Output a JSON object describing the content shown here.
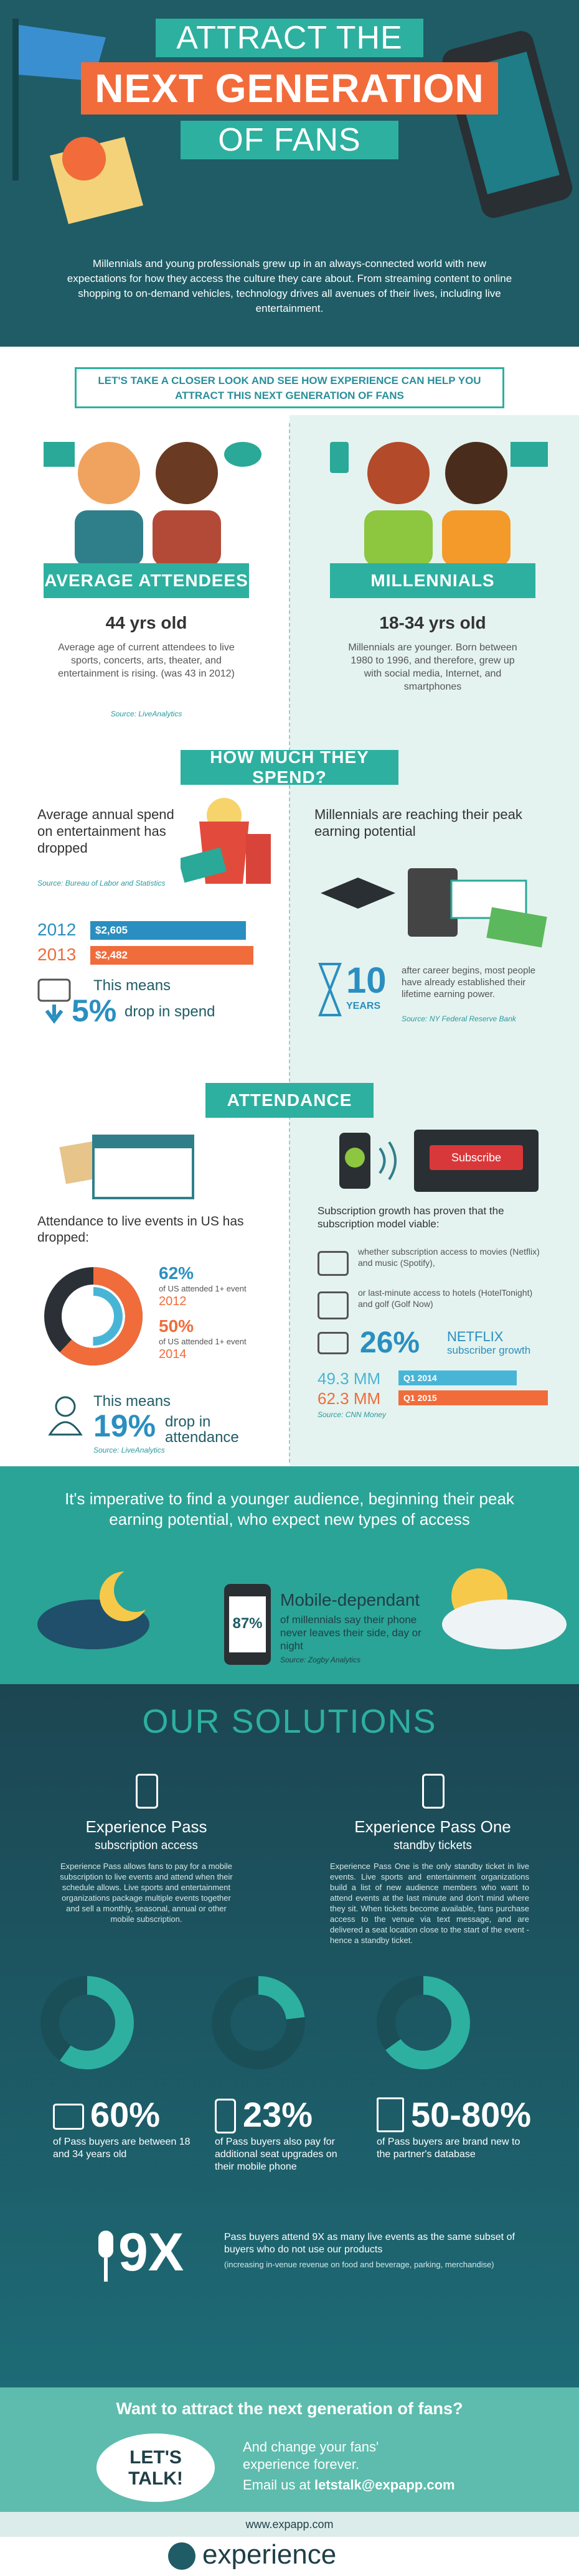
{
  "header": {
    "title_line1": "ATTRACT THE",
    "title_line2": "NEXT GENERATION",
    "title_line3": "OF FANS",
    "intro": "Millennials and young professionals grew up in an always-connected world with new expectations for how they access the culture they care about. From streaming content to online shopping to on-demand vehicles, technology drives all avenues of their lives, including live entertainment."
  },
  "closer_look": {
    "banner": "LET'S TAKE A CLOSER LOOK AND SEE HOW EXPERIENCE CAN HELP YOU ATTRACT THIS NEXT GENERATION OF FANS"
  },
  "attendees": {
    "label": "AVERAGE ATTENDEES",
    "age": "44 yrs old",
    "text": "Average age of current attendees to live sports, concerts, arts, theater, and entertainment is rising. (was 43 in 2012)",
    "source": "Source: LiveAnalytics"
  },
  "millennials": {
    "label": "MILLENNIALS",
    "age": "18-34 yrs old",
    "text": "Millennials are younger. Born between 1980 to 1996, and therefore, grew up with social media, Internet, and smartphones"
  },
  "spend": {
    "heading": "HOW MUCH THEY SPEND?",
    "left_text": "Average annual spend on entertainment has dropped",
    "left_source": "Source: Bureau of Labor and Statistics",
    "rows": [
      {
        "year": "2012",
        "amount": "$2,605"
      },
      {
        "year": "2013",
        "amount": "$2,482"
      }
    ],
    "means": "This means",
    "drop_value": "5%",
    "drop_text": "drop in spend",
    "right_text": "Millennials are reaching their peak earning potential",
    "years_value": "10",
    "years_label": "YEARS",
    "years_text": "after career begins, most people have already established their lifetime earning power.",
    "right_source": "Source: NY Federal Reserve Bank"
  },
  "attendance": {
    "heading": "ATTENDANCE",
    "left_text": "Attendance to live events in US has dropped:",
    "stats": [
      {
        "value": "62%",
        "text": "of US attended 1+ event",
        "year": "2012"
      },
      {
        "value": "50%",
        "text": "of US attended 1+ event",
        "year": "2014"
      }
    ],
    "means": "This means",
    "drop_value": "19%",
    "drop_text": "drop in attendance",
    "left_source": "Source: LiveAnalytics",
    "subscribe_button": "Subscribe",
    "right_text": "Subscription growth has proven that the subscription model viable:",
    "items": [
      "whether subscription access to movies (Netflix) and music (Spotify),",
      "or last-minute access to hotels (HotelTonight) and golf (Golf Now)"
    ],
    "growth_value": "26%",
    "growth_name": "NETFLIX",
    "growth_text": "subscriber growth",
    "rows": [
      {
        "value": "49.3 MM",
        "label": "Q1 2014"
      },
      {
        "value": "62.3 MM",
        "label": "Q1 2015"
      }
    ],
    "right_source": "Source: CNN Money"
  },
  "imperative": {
    "text": "It's imperative to find a younger audience, beginning their peak earning potential, who expect new types of access",
    "phone_value": "87%",
    "mobile_title": "Mobile-dependant",
    "mobile_text": "of millennials say their phone never leaves their side, day or night",
    "source": "Source: Zogby Analytics"
  },
  "solutions": {
    "heading": "OUR SOLUTIONS",
    "products": [
      {
        "name": "Experience Pass",
        "subtitle": "subscription access",
        "text": "Experience Pass allows fans to pay for a mobile subscription to live events and attend when their schedule allows. Live sports and entertainment organizations package multiple events together and sell a monthly, seasonal, annual or other mobile subscription."
      },
      {
        "name": "Experience Pass One",
        "subtitle": "standby tickets",
        "text": "Experience Pass One is the only standby ticket in live events. Live sports and entertainment organizations build a list of new audience members who want to attend events at the last minute and don't mind where they sit. When tickets become available, fans purchase access to the venue via text message, and are delivered a seat location close to the start of the event - hence a standby ticket."
      }
    ],
    "stats": [
      {
        "value": "60%",
        "text": "of Pass buyers are between 18 and 34 years old"
      },
      {
        "value": "23%",
        "text": "of Pass buyers also pay for additional seat upgrades on their mobile phone"
      },
      {
        "value": "50-80%",
        "text": "of Pass buyers are brand new to the partner's database"
      }
    ],
    "multiplier": "9X",
    "multiplier_text": "Pass buyers attend 9X as many live events as the same subset of buyers who do not use our products",
    "multiplier_note": "(increasing in-venue revenue on food and beverage, parking, merchandise)"
  },
  "cta": {
    "question": "Want to attract the next generation of fans?",
    "bubble": "LET'S TALK!",
    "line1": "And change your fans' experience forever.",
    "email_prefix": "Email us at",
    "email": "letstalk@expapp.com"
  },
  "footer": {
    "url": "www.expapp.com",
    "logo": "experience"
  }
}
